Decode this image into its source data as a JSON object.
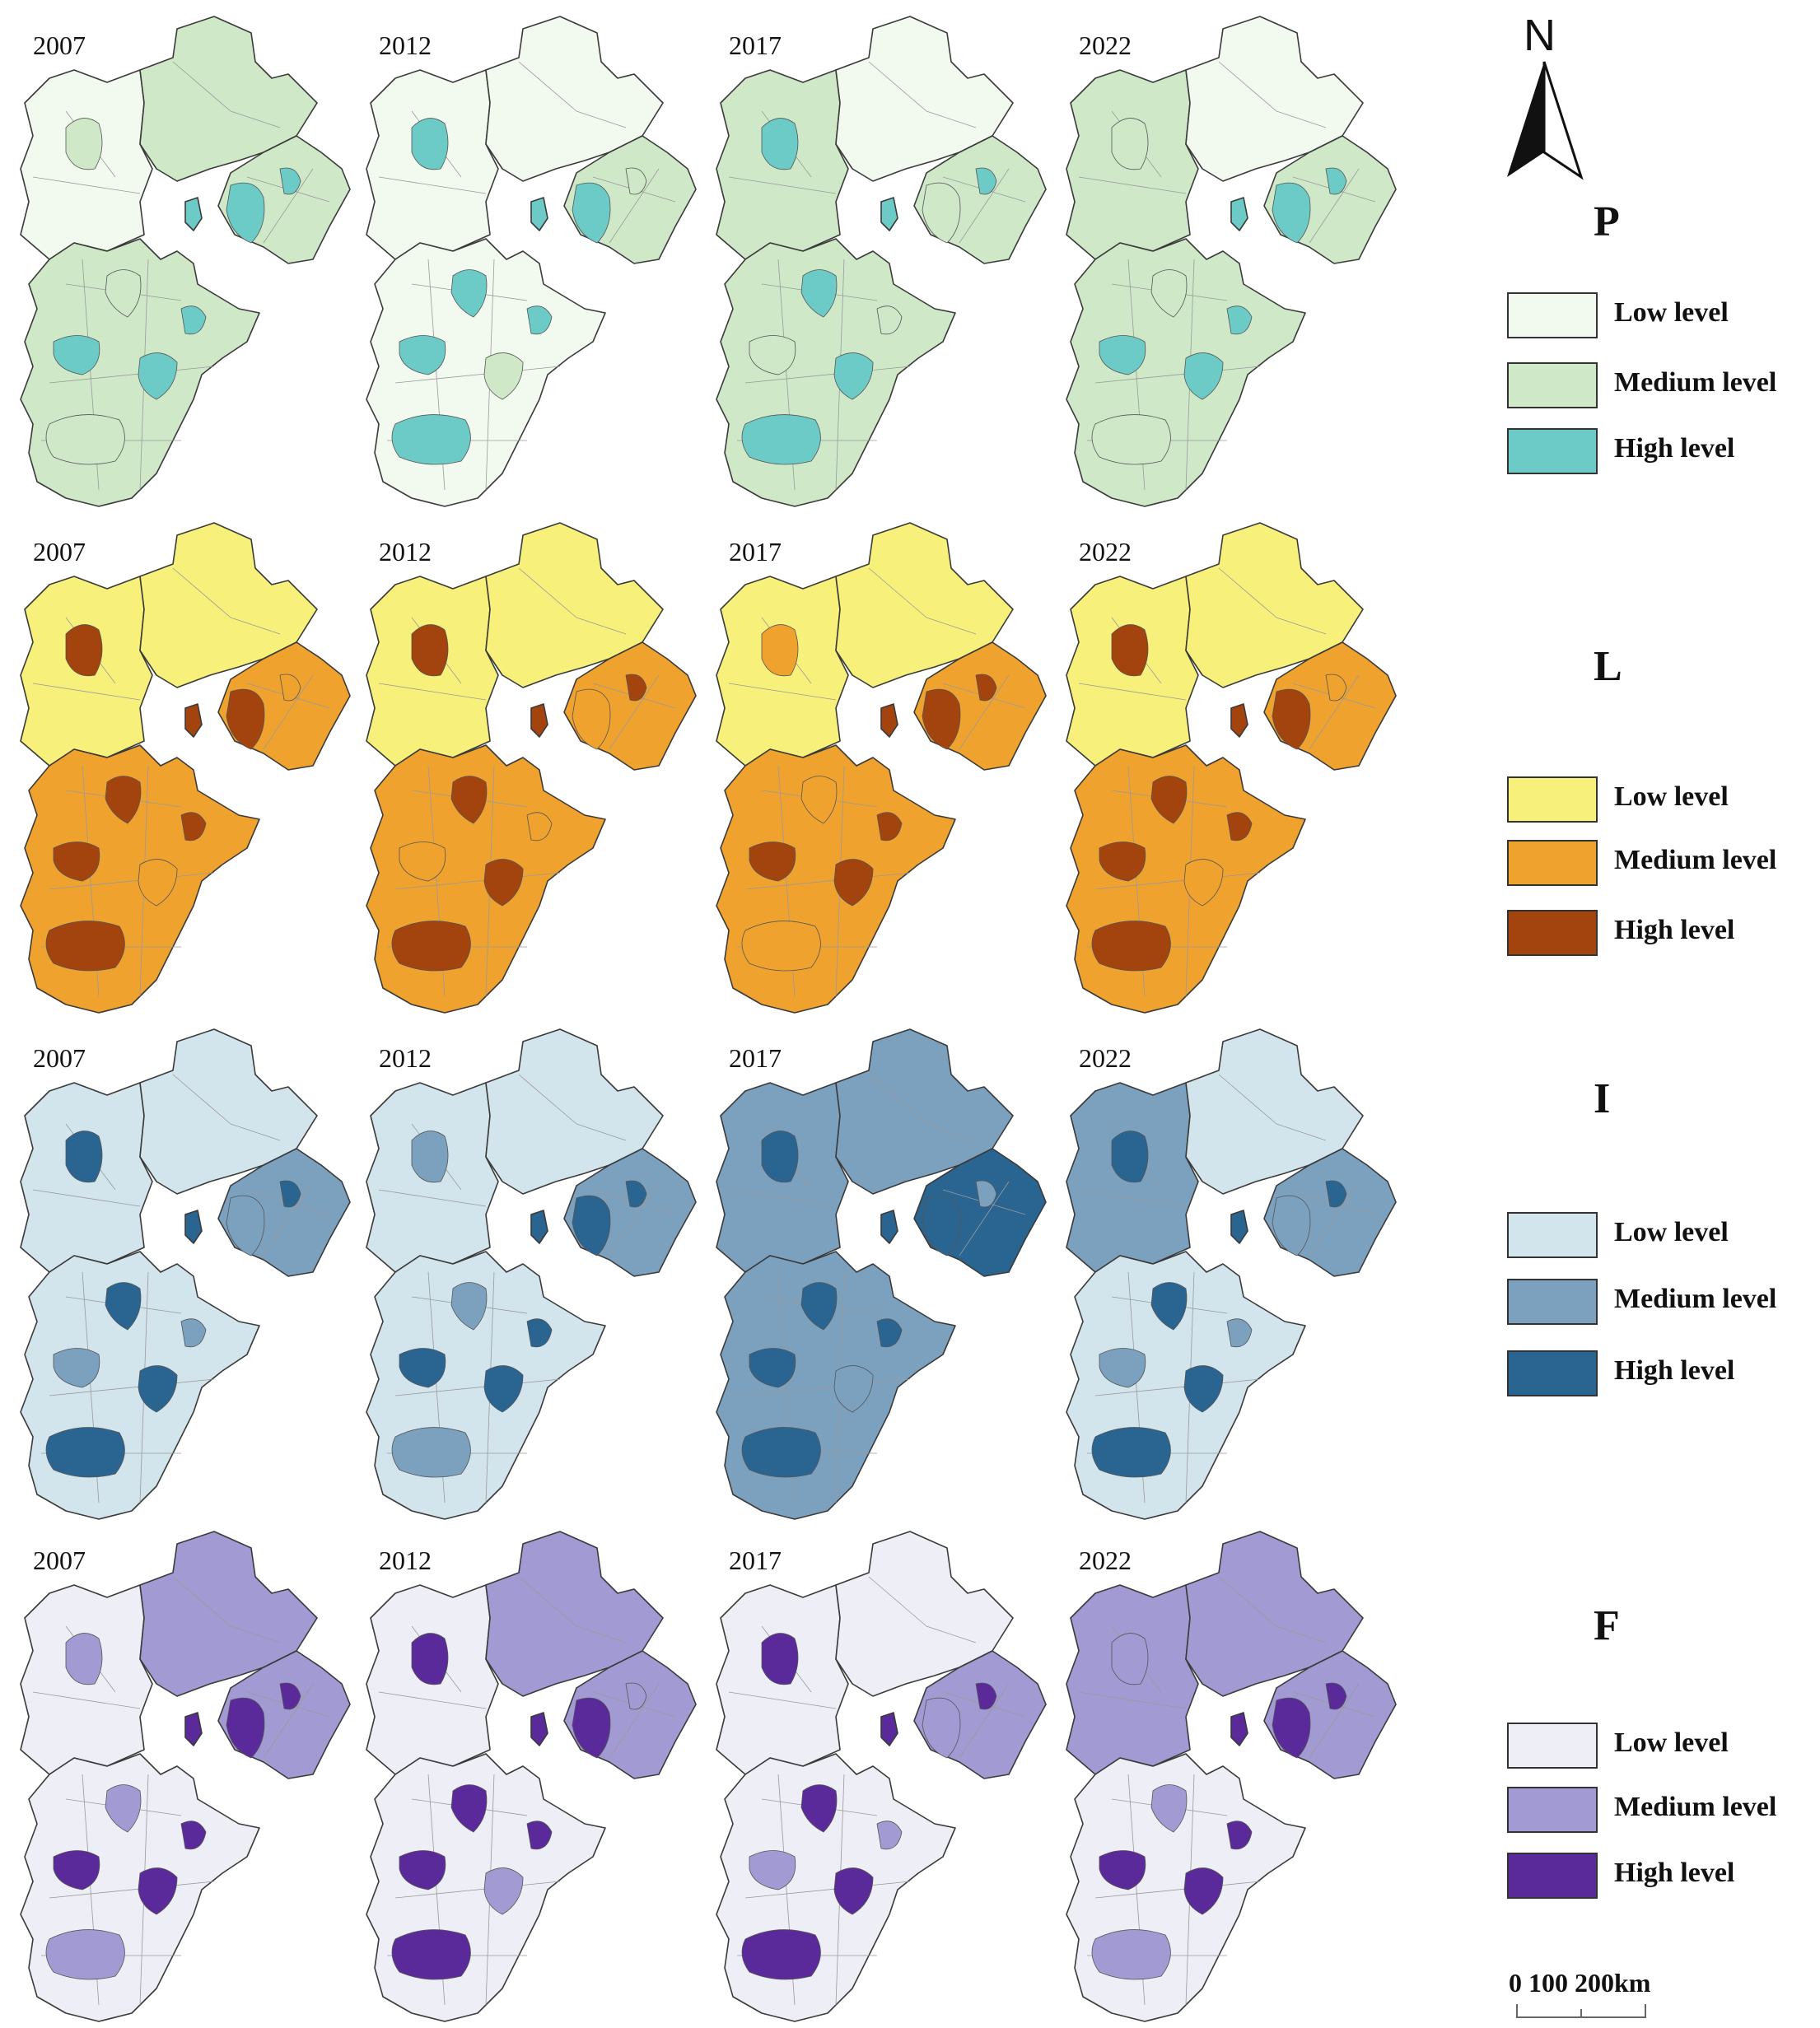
{
  "figure": {
    "years": [
      "2007",
      "2012",
      "2017",
      "2022"
    ],
    "rows": [
      {
        "id": "P",
        "title": "P",
        "colors": {
          "low": "#f2f9ef",
          "medium": "#cfe8c8",
          "high": "#6ccbc6"
        },
        "legend": [
          {
            "label": "Low level",
            "color": "#f2f9ef"
          },
          {
            "label": "Medium level",
            "color": "#cfe8c8"
          },
          {
            "label": "High level",
            "color": "#6ccbc6"
          }
        ]
      },
      {
        "id": "L",
        "title": "L",
        "colors": {
          "low": "#f7f07a",
          "medium": "#f0a22e",
          "high": "#a3440f"
        },
        "legend": [
          {
            "label": "Low level",
            "color": "#f7f07a"
          },
          {
            "label": "Medium level",
            "color": "#f0a22e"
          },
          {
            "label": "High level",
            "color": "#a3440f"
          }
        ]
      },
      {
        "id": "I",
        "title": "I",
        "colors": {
          "low": "#d3e5ec",
          "medium": "#7ca1bf",
          "high": "#2a6591"
        },
        "legend": [
          {
            "label": "Low level",
            "color": "#d3e5ec"
          },
          {
            "label": "Medium level",
            "color": "#7ca1bf"
          },
          {
            "label": "High level",
            "color": "#2a6591"
          }
        ]
      },
      {
        "id": "F",
        "title": "F",
        "colors": {
          "low": "#eeeef6",
          "medium": "#a29ad2",
          "high": "#5b2a9a"
        },
        "legend": [
          {
            "label": "Low level",
            "color": "#eeeef6"
          },
          {
            "label": "Medium level",
            "color": "#a29ad2"
          },
          {
            "label": "High level",
            "color": "#5b2a9a"
          }
        ]
      }
    ],
    "maps": {
      "P": [
        {
          "year": "2007",
          "base": "low",
          "nw": "low",
          "ne": "medium",
          "east": "medium",
          "south": "medium",
          "blobs": "high"
        },
        {
          "year": "2012",
          "base": "low",
          "nw": "low",
          "ne": "low",
          "east": "medium",
          "south": "low",
          "blobs": "high"
        },
        {
          "year": "2017",
          "base": "low",
          "nw": "medium",
          "ne": "low",
          "east": "medium",
          "south": "medium",
          "blobs": "high"
        },
        {
          "year": "2022",
          "base": "medium",
          "nw": "medium",
          "ne": "low",
          "east": "medium",
          "south": "medium",
          "blobs": "high"
        }
      ],
      "L": [
        {
          "year": "2007",
          "base": "low",
          "nw": "low",
          "ne": "low",
          "east": "medium",
          "south": "medium",
          "blobs": "high"
        },
        {
          "year": "2012",
          "base": "low",
          "nw": "low",
          "ne": "low",
          "east": "medium",
          "south": "medium",
          "blobs": "high"
        },
        {
          "year": "2017",
          "base": "low",
          "nw": "low",
          "ne": "low",
          "east": "medium",
          "south": "medium",
          "blobs": "high"
        },
        {
          "year": "2022",
          "base": "low",
          "nw": "low",
          "ne": "low",
          "east": "medium",
          "south": "medium",
          "blobs": "high"
        }
      ],
      "I": [
        {
          "year": "2007",
          "base": "medium",
          "nw": "low",
          "ne": "low",
          "east": "medium",
          "south": "low",
          "blobs": "high"
        },
        {
          "year": "2012",
          "base": "medium",
          "nw": "low",
          "ne": "low",
          "east": "medium",
          "south": "low",
          "blobs": "high"
        },
        {
          "year": "2017",
          "base": "medium",
          "nw": "medium",
          "ne": "medium",
          "east": "high",
          "south": "medium",
          "blobs": "high"
        },
        {
          "year": "2022",
          "base": "medium",
          "nw": "medium",
          "ne": "low",
          "east": "medium",
          "south": "low",
          "blobs": "high"
        }
      ],
      "F": [
        {
          "year": "2007",
          "base": "low",
          "nw": "low",
          "ne": "medium",
          "east": "medium",
          "south": "low",
          "blobs": "high"
        },
        {
          "year": "2012",
          "base": "low",
          "nw": "low",
          "ne": "medium",
          "east": "medium",
          "south": "low",
          "blobs": "high"
        },
        {
          "year": "2017",
          "base": "low",
          "nw": "low",
          "ne": "low",
          "east": "medium",
          "south": "low",
          "blobs": "high"
        },
        {
          "year": "2022",
          "base": "low",
          "nw": "medium",
          "ne": "medium",
          "east": "medium",
          "south": "low",
          "blobs": "high"
        }
      ]
    },
    "north_arrow": {
      "label": "N"
    },
    "scale_bar": {
      "label": "0    100   200km"
    },
    "outline_color": "#3a3a3a",
    "internal_line_color": "#9a9a9a"
  }
}
